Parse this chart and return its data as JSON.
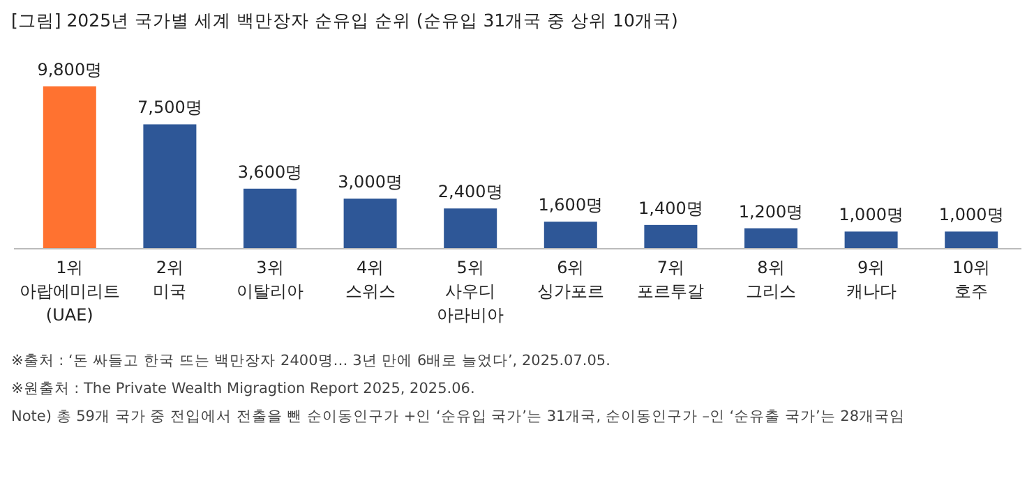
{
  "chart_data": {
    "type": "bar",
    "title": "[그림] 2025년 국가별 세계 백만장자 순유입 순위 (순유입 31개국 중 상위 10개국)",
    "categories": [
      "1위\n아랍에미리트\n(UAE)",
      "2위\n미국",
      "3위\n이탈리아",
      "4위\n스위스",
      "5위\n사우디\n아라비아",
      "6위\n싱가포르",
      "7위\n포르투갈",
      "8위\n그리스",
      "9위\n캐나다",
      "10위\n호주"
    ],
    "values": [
      9800,
      7500,
      3600,
      3000,
      2400,
      1600,
      1400,
      1200,
      1000,
      1000
    ],
    "colors": [
      "#ff7230",
      "#2e5797",
      "#2e5797",
      "#2e5797",
      "#2e5797",
      "#2e5797",
      "#2e5797",
      "#2e5797",
      "#2e5797",
      "#2e5797"
    ],
    "value_labels": [
      "9,800명",
      "7,500명",
      "3,600명",
      "3,000명",
      "2,400명",
      "1,600명",
      "1,400명",
      "1,200명",
      "1,000명",
      "1,000명"
    ],
    "annotations": [
      "※출처 : ‘돈 싸들고 한국 뜨는 백만장자 2400명… 3년 만에 6배로 늘었다’, 2025.07.05.",
      "※원출처 : The Private Wealth Migragtion Report 2025, 2025.06.",
      "Note) 총 59개 국가 중 전입에서 전출을 뺀 순이동인구가 +인 ‘순유입 국가’는 31개국, 순이동인구가 –인 ‘순유출 국가’는 28개국임"
    ]
  }
}
